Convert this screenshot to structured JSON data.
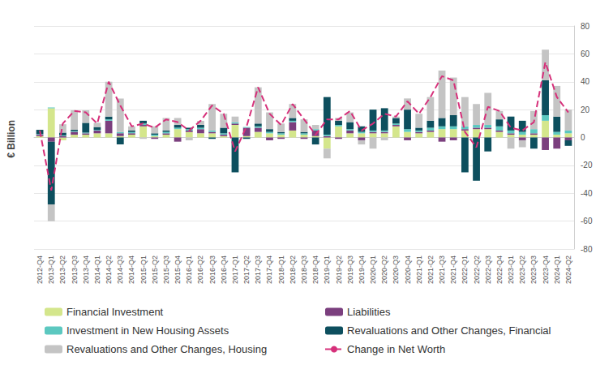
{
  "chart_data": {
    "type": "bar",
    "stacked": true,
    "grid": true,
    "legend": "bottom",
    "y_label": "€ Billion",
    "categories": [
      "2012-Q4",
      "2013-Q1",
      "2013-Q2",
      "2013-Q3",
      "2013-Q4",
      "2014-Q1",
      "2014-Q2",
      "2014-Q3",
      "2014-Q4",
      "2015-Q1",
      "2015-Q2",
      "2015-Q3",
      "2015-Q4",
      "2016-Q1",
      "2016-Q2",
      "2016-Q3",
      "2016-Q4",
      "2017-Q1",
      "2017-Q2",
      "2017-Q3",
      "2017-Q4",
      "2018-Q1",
      "2018-Q2",
      "2018-Q3",
      "2018-Q4",
      "2019-Q1",
      "2019-Q2",
      "2019-Q3",
      "2019-Q4",
      "2020-Q1",
      "2020-Q2",
      "2020-Q3",
      "2020-Q4",
      "2021-Q1",
      "2021-Q2",
      "2021-Q3",
      "2021-Q4",
      "2022-Q1",
      "2022-Q2",
      "2022-Q3",
      "2022-Q4",
      "2023-Q1",
      "2023-Q2",
      "2023-Q3",
      "2023-Q4",
      "2024-Q1",
      "2024-Q2"
    ],
    "ylim": [
      -80,
      80
    ],
    "yticks": [
      -80,
      -60,
      -40,
      -20,
      0,
      20,
      40,
      60,
      80
    ],
    "series": [
      {
        "name": "Financial Investment",
        "type": "bar",
        "color": "#d4e68c",
        "values": [
          1,
          21,
          -2,
          2,
          2,
          3,
          3,
          1,
          2,
          8,
          1,
          2,
          6,
          4,
          3,
          3,
          1,
          9,
          1,
          4,
          3,
          2,
          5,
          2,
          1,
          -8,
          8,
          3,
          3,
          3,
          3,
          8,
          4,
          3,
          4,
          6,
          6,
          5,
          6,
          6,
          4,
          2,
          2,
          2,
          12,
          2,
          3
        ]
      },
      {
        "name": "Liabilities",
        "type": "bar",
        "color": "#7b3f7e",
        "values": [
          1,
          -3,
          1,
          2,
          1,
          2,
          9,
          2,
          1,
          1,
          -1,
          1,
          -3,
          1,
          3,
          1,
          1,
          1,
          6,
          3,
          -2,
          -1,
          6,
          -1,
          4,
          1,
          -1,
          2,
          -2,
          1,
          1,
          1,
          -2,
          1,
          1,
          -3,
          -2,
          1,
          1,
          1,
          1,
          1,
          -2,
          1,
          -9,
          -8,
          -2
        ]
      },
      {
        "name": "Investment in New Housing Assets",
        "type": "bar",
        "color": "#5cc8c0",
        "values": [
          0.5,
          0.5,
          0.5,
          0.5,
          0.5,
          0.5,
          1,
          1,
          1,
          1,
          1,
          1,
          1,
          1,
          1,
          1,
          1,
          1,
          0.5,
          1,
          1,
          1,
          1,
          1,
          1,
          1,
          1,
          1,
          1,
          1,
          1,
          1,
          2,
          1,
          2,
          2,
          2,
          2,
          2,
          2,
          3,
          2,
          2,
          3,
          4,
          2,
          2
        ]
      },
      {
        "name": "Revaluations and Other Changes, Financial",
        "type": "bar",
        "color": "#0d4f5e",
        "values": [
          3,
          -45,
          2,
          1,
          7,
          2,
          2,
          -5,
          1,
          2,
          1,
          1,
          2,
          1,
          2,
          -1,
          4,
          -25,
          -1,
          2,
          2,
          1,
          2,
          1,
          -5,
          27,
          3,
          5,
          4,
          15,
          16,
          4,
          14,
          2,
          5,
          6,
          8,
          -25,
          -31,
          -10,
          5,
          10,
          8,
          -8,
          25,
          11,
          -4
        ]
      },
      {
        "name": "Revaluations and Other Changes, Housing",
        "type": "bar",
        "color": "#c4c4c4",
        "values": [
          0,
          -12,
          6,
          14,
          9,
          3,
          25,
          24,
          3,
          -1,
          5,
          9,
          5,
          -2,
          3,
          19,
          10,
          4,
          0,
          26,
          12,
          6,
          10,
          9,
          3,
          -7,
          2,
          7,
          -3,
          -8,
          -2,
          1,
          8,
          10,
          17,
          34,
          27,
          21,
          15,
          23,
          6,
          -8,
          -5,
          13,
          22,
          22,
          15
        ]
      },
      {
        "name": "Change in Net Worth",
        "type": "line",
        "color": "#d6307a",
        "line_style": "dashed",
        "values": [
          5,
          -38,
          10,
          19,
          18,
          10,
          40,
          23,
          8,
          10,
          7,
          13,
          11,
          5,
          12,
          23,
          17,
          -10,
          8,
          36,
          17,
          9,
          24,
          13,
          2,
          13,
          13,
          19,
          5,
          10,
          17,
          15,
          26,
          17,
          29,
          44,
          41,
          4,
          -7,
          22,
          19,
          7,
          5,
          11,
          54,
          29,
          18
        ]
      }
    ]
  }
}
